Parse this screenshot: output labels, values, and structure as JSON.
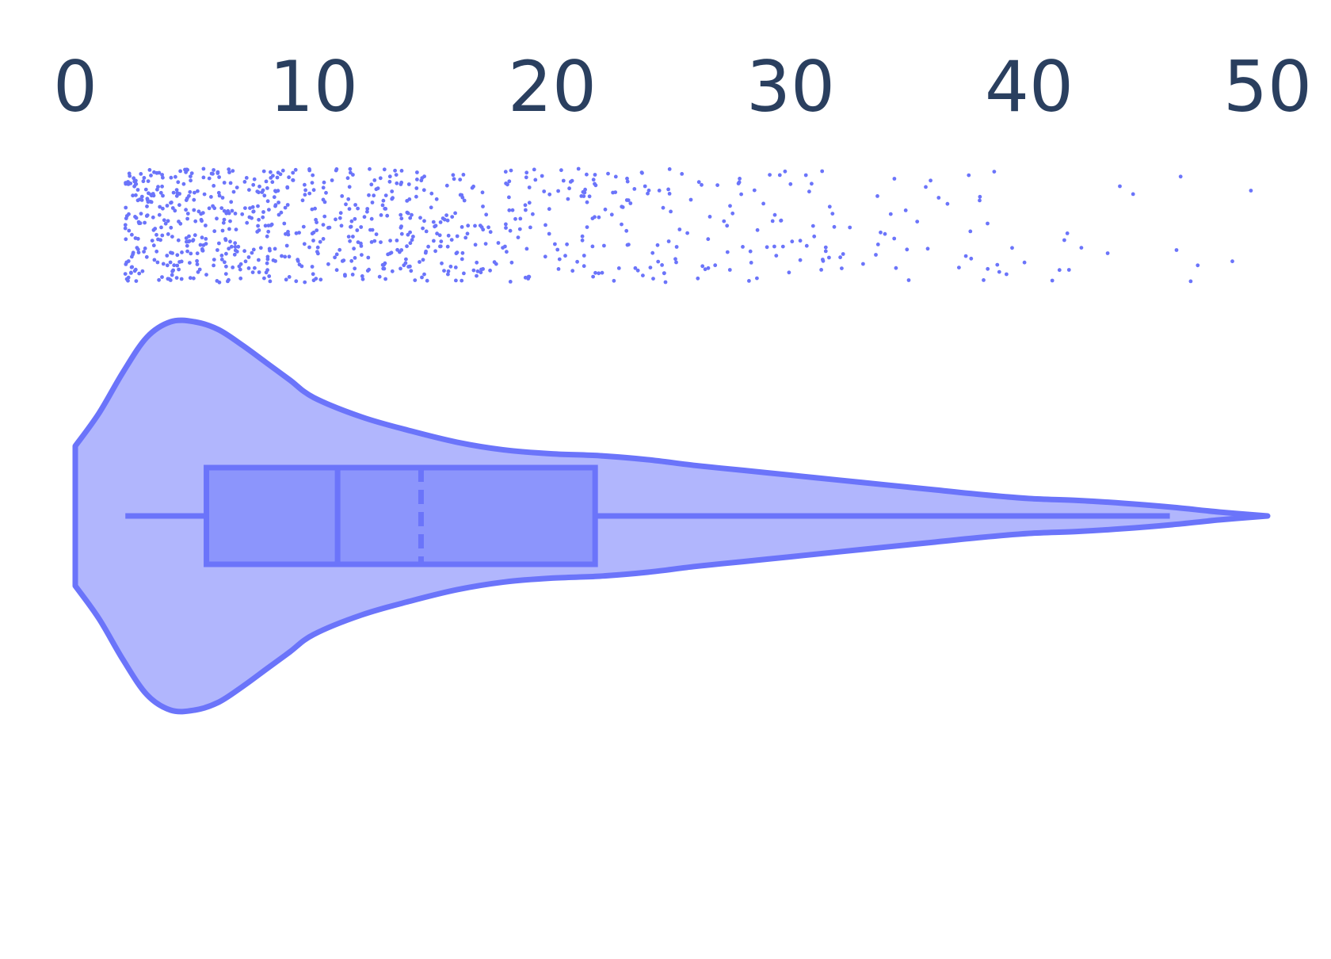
{
  "chart_data": {
    "type": "violin",
    "orientation": "horizontal",
    "title": "",
    "xlabel": "",
    "ylabel": "",
    "xlim": [
      0,
      50
    ],
    "x_axis_position": "top",
    "tick_values": [
      0,
      10,
      20,
      30,
      40,
      50
    ],
    "tick_labels": [
      "0",
      "10",
      "20",
      "30",
      "40",
      "50"
    ],
    "grid": false,
    "legend": "none",
    "colors": {
      "line": "#6b74fa",
      "violin_fill": "#b1b6fd",
      "box_fill": "#8c95fc",
      "points": "#6b74fa",
      "tick_text": "#2a3f5f"
    },
    "box": {
      "whisker_low": 2.1,
      "q1": 5.5,
      "median": 11.0,
      "mean": 14.5,
      "q3": 21.8,
      "whisker_high": 45.9
    },
    "density": {
      "x": [
        0,
        1,
        2,
        3,
        4,
        5,
        6,
        7,
        8,
        9,
        10,
        12,
        14,
        16,
        18,
        20,
        22,
        24,
        26,
        28,
        30,
        32,
        34,
        36,
        38,
        40,
        42,
        44,
        46,
        48,
        50
      ],
      "y": [
        0.36,
        0.53,
        0.74,
        0.92,
        1.0,
        1.0,
        0.96,
        0.88,
        0.79,
        0.7,
        0.61,
        0.51,
        0.44,
        0.38,
        0.34,
        0.32,
        0.31,
        0.29,
        0.26,
        0.235,
        0.21,
        0.185,
        0.16,
        0.135,
        0.11,
        0.09,
        0.08,
        0.065,
        0.045,
        0.02,
        0.0
      ]
    },
    "points": {
      "count": 900,
      "x_range": [
        2.1,
        49.6
      ],
      "seed": 7
    }
  }
}
